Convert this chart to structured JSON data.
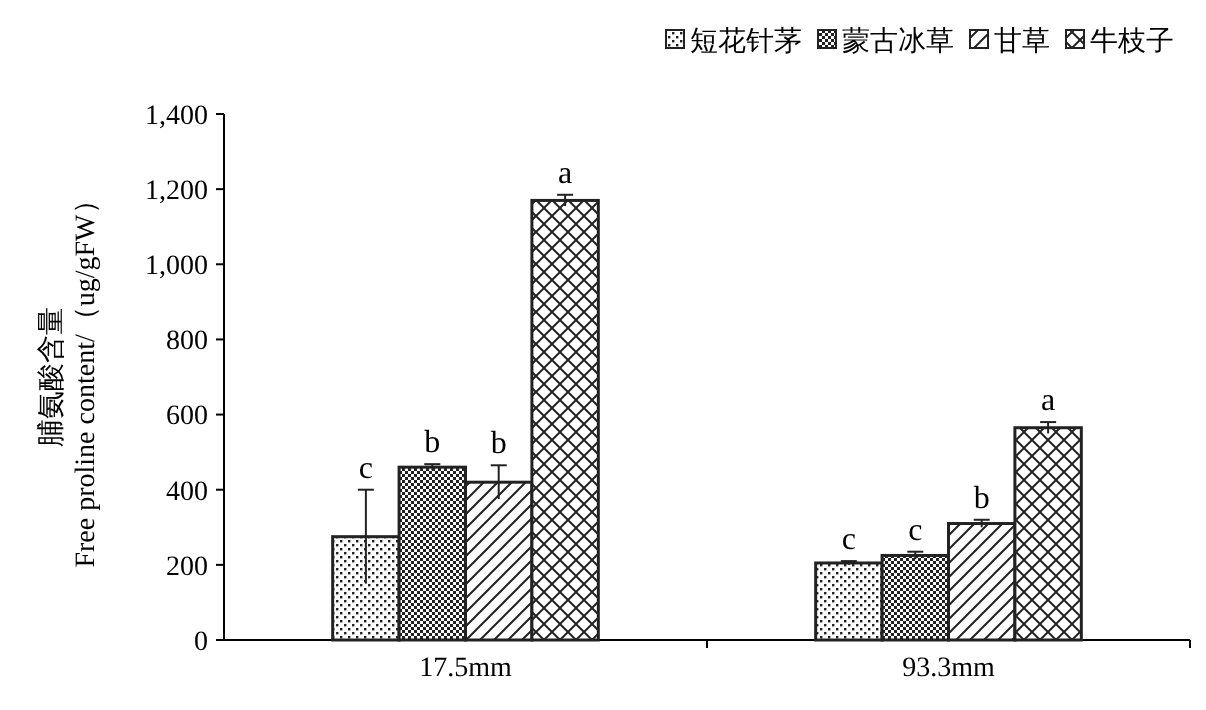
{
  "chart_data": {
    "type": "bar",
    "ylabel": "脯氨酸含量\nFree proline content/（ug/gFW）",
    "categories": [
      "17.5mm",
      "93.3mm"
    ],
    "series": [
      {
        "name": "短花针茅",
        "color": "#222222",
        "values": [
          275,
          205
        ],
        "errors": [
          125,
          5
        ]
      },
      {
        "name": "蒙古冰草",
        "color": "#222222",
        "values": [
          460,
          225
        ],
        "errors": [
          8,
          10
        ]
      },
      {
        "name": "甘草",
        "color": "#222222",
        "values": [
          420,
          310
        ],
        "errors": [
          45,
          10
        ]
      },
      {
        "name": "牛枝子",
        "color": "#222222",
        "values": [
          1170,
          565
        ],
        "errors": [
          15,
          15
        ]
      }
    ],
    "ylim": [
      0,
      1400
    ],
    "yticks": [
      0,
      200,
      400,
      600,
      800,
      {
        "value": 1000,
        "label": "1,000"
      },
      {
        "value": 1200,
        "label": "1,200"
      },
      {
        "value": 1400,
        "label": "1,400"
      }
    ],
    "legend": "top right",
    "grid": false,
    "annotations": [
      "c",
      "b",
      "b",
      "a",
      "c",
      "c",
      "b",
      "a"
    ]
  }
}
